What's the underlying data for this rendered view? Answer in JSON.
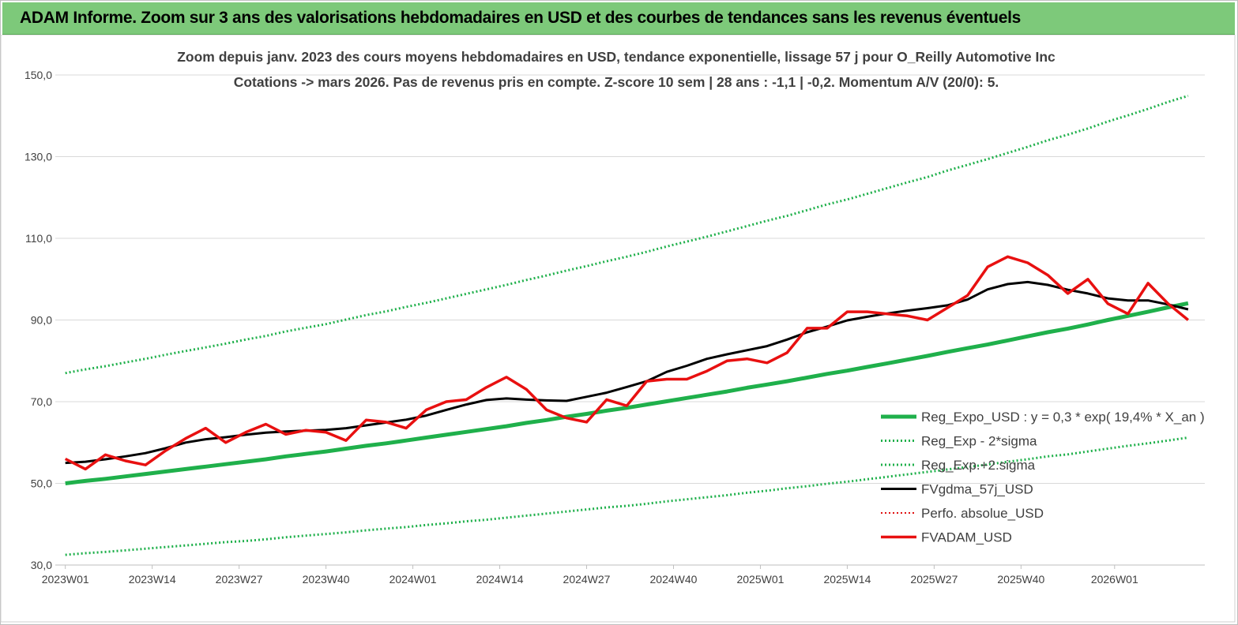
{
  "header": {
    "title": "ADAM Informe. Zoom sur 3 ans des valorisations hebdomadaires en USD et des courbes de tendances sans les revenus éventuels"
  },
  "chart_data": {
    "type": "line",
    "title": "Zoom depuis janv. 2023 des cours moyens hebdomadaires en USD, tendance exponentielle, lissage 57 j pour O_Reilly Automotive Inc",
    "subtitle": "Cotations -> mars 2026. Pas de revenus pris en compte. Z-score 10 sem  | 28 ans : -1,1 | -0,2. Momentum A/V (20/0): 5.",
    "x": [
      0,
      3,
      6,
      9,
      12,
      15,
      18,
      21,
      24,
      27,
      30,
      33,
      36,
      39,
      42,
      45,
      48,
      51,
      54,
      57,
      60,
      63,
      66,
      69,
      72,
      75,
      78,
      81,
      84,
      87,
      90,
      93,
      96,
      99,
      102,
      105,
      108,
      111,
      114,
      117,
      120,
      123,
      126,
      129,
      132,
      135,
      138,
      141,
      144,
      147,
      150,
      153,
      156,
      159,
      162,
      165,
      168
    ],
    "xlim": [
      -1.5,
      170.5
    ],
    "xticks": [
      {
        "value": 0,
        "label": "2023W01"
      },
      {
        "value": 13,
        "label": "2023W14"
      },
      {
        "value": 26,
        "label": "2023W27"
      },
      {
        "value": 39,
        "label": "2023W40"
      },
      {
        "value": 52,
        "label": "2024W01"
      },
      {
        "value": 65,
        "label": "2024W14"
      },
      {
        "value": 78,
        "label": "2024W27"
      },
      {
        "value": 91,
        "label": "2024W40"
      },
      {
        "value": 104,
        "label": "2025W01"
      },
      {
        "value": 117,
        "label": "2025W14"
      },
      {
        "value": 130,
        "label": "2025W27"
      },
      {
        "value": 143,
        "label": "2025W40"
      },
      {
        "value": 157,
        "label": "2026W01"
      }
    ],
    "ylim": [
      30,
      150
    ],
    "yticks": [
      {
        "value": 30,
        "label": "30,0"
      },
      {
        "value": 50,
        "label": "50,0"
      },
      {
        "value": 70,
        "label": "70,0"
      },
      {
        "value": 90,
        "label": "90,0"
      },
      {
        "value": 110,
        "label": "110,0"
      },
      {
        "value": 130,
        "label": "130,0"
      },
      {
        "value": 150,
        "label": "150,0"
      }
    ],
    "grid": true,
    "legend": "lower right",
    "series": [
      {
        "name": "Reg_Expo_USD : y = 0,3  * exp( 19,4% *  X_an )",
        "color": "#1fb04b",
        "line_style": "solid",
        "width": 5,
        "values": [
          50.0,
          50.6,
          51.1,
          51.7,
          52.3,
          52.9,
          53.5,
          54.1,
          54.7,
          55.3,
          55.9,
          56.6,
          57.2,
          57.8,
          58.5,
          59.2,
          59.8,
          60.5,
          61.2,
          61.9,
          62.6,
          63.3,
          64.0,
          64.8,
          65.5,
          66.3,
          67.0,
          67.8,
          68.5,
          69.3,
          70.1,
          70.9,
          71.7,
          72.5,
          73.4,
          74.2,
          75.0,
          75.9,
          76.8,
          77.6,
          78.5,
          79.4,
          80.3,
          81.2,
          82.2,
          83.1,
          84.0,
          85.0,
          86.0,
          87.0,
          87.9,
          88.9,
          90.0,
          91.0,
          92.0,
          93.1,
          94.1
        ]
      },
      {
        "name": "Reg_Exp - 2*sigma",
        "color": "#1fb04b",
        "line_style": "dotted",
        "width": 3,
        "values": [
          32.5,
          32.9,
          33.2,
          33.6,
          34.0,
          34.4,
          34.8,
          35.2,
          35.6,
          35.9,
          36.3,
          36.8,
          37.2,
          37.6,
          38.0,
          38.5,
          38.9,
          39.3,
          39.8,
          40.2,
          40.7,
          41.1,
          41.6,
          42.1,
          42.6,
          43.1,
          43.6,
          44.1,
          44.5,
          45.0,
          45.6,
          46.1,
          46.6,
          47.1,
          47.7,
          48.2,
          48.8,
          49.3,
          49.9,
          50.4,
          51.0,
          51.6,
          52.2,
          52.8,
          53.4,
          54.0,
          54.6,
          55.3,
          55.9,
          56.6,
          57.1,
          57.8,
          58.5,
          59.2,
          59.8,
          60.5,
          61.2
        ]
      },
      {
        "name": "Reg_Exp.+2.sigma",
        "color": "#1fb04b",
        "line_style": "dotted",
        "width": 3,
        "values": [
          77.0,
          77.9,
          78.7,
          79.6,
          80.5,
          81.5,
          82.4,
          83.3,
          84.2,
          85.2,
          86.1,
          87.2,
          88.1,
          89.0,
          90.1,
          91.2,
          92.1,
          93.2,
          94.2,
          95.3,
          96.4,
          97.5,
          98.6,
          99.8,
          100.9,
          102.1,
          103.2,
          104.4,
          105.5,
          106.7,
          108.0,
          109.2,
          110.4,
          111.7,
          113.0,
          114.3,
          115.5,
          116.9,
          118.3,
          119.5,
          120.9,
          122.3,
          123.7,
          125.0,
          126.6,
          128.0,
          129.4,
          130.9,
          132.4,
          134.0,
          135.4,
          136.9,
          138.6,
          140.1,
          141.7,
          143.4,
          144.9
        ]
      },
      {
        "name": "FVgdma_57j_USD",
        "color": "#000000",
        "line_style": "solid",
        "width": 3,
        "values": [
          55.0,
          55.3,
          55.9,
          56.6,
          57.4,
          58.6,
          60.0,
          60.8,
          61.3,
          61.9,
          62.4,
          62.7,
          62.9,
          63.1,
          63.5,
          64.2,
          64.9,
          65.6,
          66.6,
          68.0,
          69.3,
          70.4,
          70.8,
          70.5,
          70.3,
          70.2,
          71.2,
          72.2,
          73.6,
          75.0,
          77.3,
          78.8,
          80.5,
          81.6,
          82.6,
          83.6,
          85.2,
          87.0,
          88.4,
          89.9,
          90.8,
          91.6,
          92.3,
          92.9,
          93.6,
          95.0,
          97.5,
          98.8,
          99.3,
          98.6,
          97.4,
          96.5,
          95.3,
          94.8,
          94.8,
          93.8,
          92.6
        ]
      },
      {
        "name": "Perfo. absolue_USD",
        "color": "#e01010",
        "line_style": "dotted",
        "width": 2,
        "values": [
          null,
          null,
          null,
          null,
          null,
          null,
          null,
          null,
          null,
          null,
          null,
          null,
          null,
          null,
          null,
          null,
          null,
          null,
          null,
          null,
          null,
          null,
          null,
          null,
          null,
          null,
          null,
          null,
          null,
          null,
          null,
          null,
          null,
          null,
          null,
          null,
          null,
          null,
          null,
          null,
          null,
          null,
          null,
          null,
          null,
          null,
          null,
          null,
          null,
          null,
          null,
          null,
          null,
          null,
          null,
          null,
          null
        ]
      },
      {
        "name": "FVADAM_USD",
        "color": "#e81010",
        "line_style": "solid",
        "width": 3.5,
        "values": [
          56.0,
          53.5,
          57.0,
          55.5,
          54.5,
          58.0,
          61.0,
          63.5,
          60.0,
          62.5,
          64.5,
          62.0,
          63.0,
          62.5,
          60.5,
          65.5,
          65.0,
          63.5,
          68.0,
          70.0,
          70.5,
          73.5,
          76.0,
          73.0,
          68.0,
          66.0,
          65.0,
          70.5,
          69.0,
          75.0,
          75.5,
          75.5,
          77.5,
          80.0,
          80.5,
          79.5,
          82.0,
          88.0,
          88.0,
          92.0,
          92.0,
          91.5,
          91.0,
          90.0,
          93.0,
          96.0,
          103.0,
          105.5,
          104.0,
          101.0,
          96.5,
          100.0,
          94.0,
          91.5,
          99.0,
          94.0,
          90.0
        ]
      }
    ]
  }
}
